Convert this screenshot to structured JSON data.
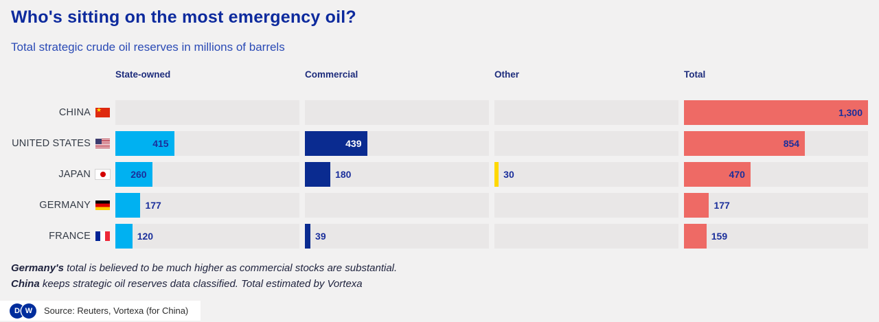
{
  "header": {
    "title": "Who's sitting on the most emergency oil?",
    "subtitle": "Total strategic crude oil reserves in millions of barrels"
  },
  "chart_data": {
    "type": "bar",
    "orientation": "horizontal",
    "unit": "millions of barrels",
    "max_value": 1300,
    "legend_position": "column-headers",
    "grid": false,
    "columns": [
      {
        "key": "state_owned",
        "label": "State-owned",
        "color": "#00b1f1"
      },
      {
        "key": "commercial",
        "label": "Commercial",
        "color": "#0a2b90"
      },
      {
        "key": "other",
        "label": "Other",
        "color": "#ffd800"
      },
      {
        "key": "total",
        "label": "Total",
        "color": "#ee6a65"
      }
    ],
    "rows": [
      {
        "country": "CHINA",
        "flag": "china",
        "values": {
          "state_owned": null,
          "commercial": null,
          "other": null,
          "total": 1300
        }
      },
      {
        "country": "UNITED STATES",
        "flag": "usa",
        "values": {
          "state_owned": 415,
          "commercial": 439,
          "other": null,
          "total": 854
        }
      },
      {
        "country": "JAPAN",
        "flag": "japan",
        "values": {
          "state_owned": 260,
          "commercial": 180,
          "other": 30,
          "total": 470
        }
      },
      {
        "country": "GERMANY",
        "flag": "germany",
        "values": {
          "state_owned": 177,
          "commercial": null,
          "other": null,
          "total": 177
        }
      },
      {
        "country": "FRANCE",
        "flag": "france",
        "values": {
          "state_owned": 120,
          "commercial": 39,
          "other": null,
          "total": 159
        }
      }
    ]
  },
  "notes": [
    {
      "lead": "Germany's",
      "text": " total is believed to be much higher as commercial stocks are substantial."
    },
    {
      "lead": "China",
      "text": " keeps strategic oil reserves data classified. Total estimated by Vortexa"
    }
  ],
  "footer": {
    "logo_letters": {
      "d": "D",
      "w": "W"
    },
    "source": "Source: Reuters, Vortexa (for China)"
  }
}
